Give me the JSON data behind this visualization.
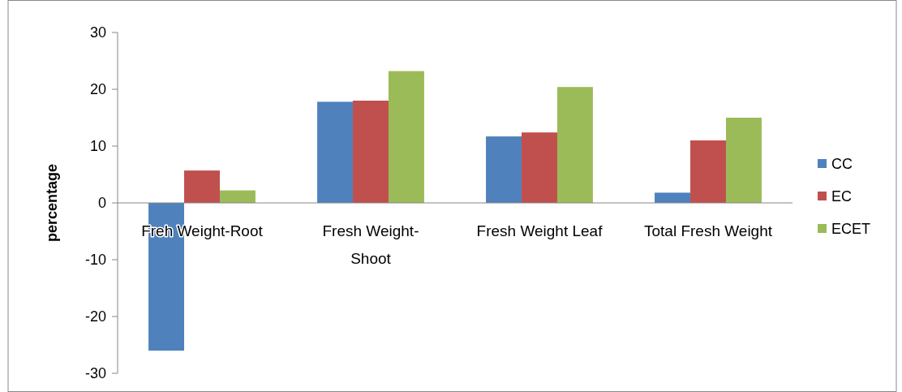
{
  "chart_data": {
    "type": "bar",
    "ylabel": "percentage",
    "categories": [
      "Freh Weight-Root",
      "Fresh Weight-Shoot",
      "Fresh Weight Leaf",
      "Total Fresh Weight"
    ],
    "series": [
      {
        "name": "CC",
        "color": "#4f81bd",
        "values": [
          -26,
          17.8,
          11.7,
          1.8
        ]
      },
      {
        "name": "EC",
        "color": "#c0504d",
        "values": [
          5.7,
          18,
          12.4,
          11
        ]
      },
      {
        "name": "ECET",
        "color": "#9bbb59",
        "values": [
          2.2,
          23.2,
          20.4,
          15
        ]
      }
    ],
    "ylim": [
      -30,
      30
    ],
    "yticks": [
      -30,
      -20,
      -10,
      0,
      10,
      20,
      30
    ],
    "legend": "right",
    "grid": false
  }
}
